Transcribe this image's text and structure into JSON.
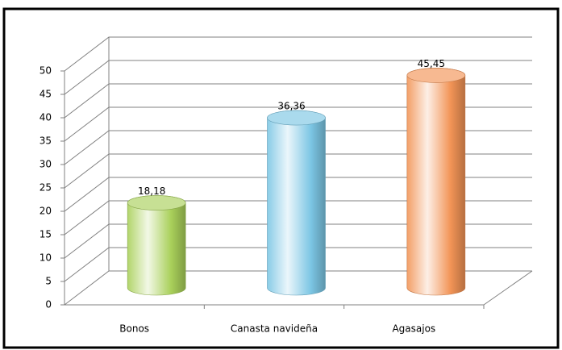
{
  "chart_data": {
    "type": "bar3d",
    "categories": [
      "Bonos",
      "Canasta navideña",
      "Agasajos"
    ],
    "values": [
      18.18,
      36.36,
      45.45
    ],
    "value_labels": [
      "18,18",
      "36,36",
      "45,45"
    ],
    "colors": [
      "#a9d05a",
      "#7cc6e4",
      "#f29456"
    ],
    "ylim": [
      0,
      50
    ],
    "yticks": [
      0,
      5,
      10,
      15,
      20,
      25,
      30,
      35,
      40,
      45,
      50
    ],
    "grid": true
  }
}
